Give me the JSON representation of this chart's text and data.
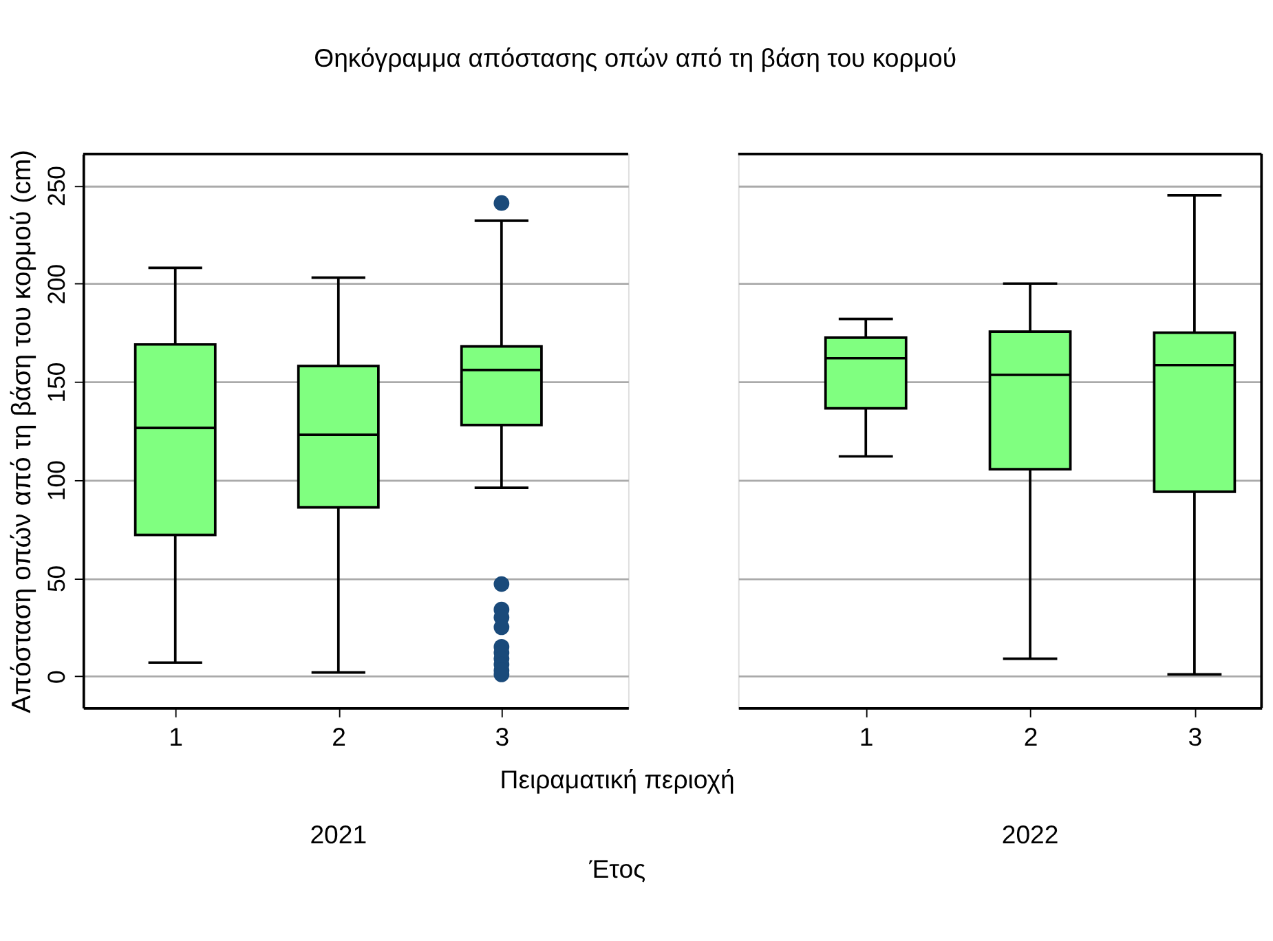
{
  "chart_data": [
    {
      "type": "box",
      "title": "Θηκόγραμμα απόστασης οπών από τη βάση του κορμού",
      "xlabel": "Πειραματική περιοχή",
      "ylabel": "Απόσταση οπών από τη βάση του κορμού (cm)",
      "categories": [
        "1",
        "2",
        "3"
      ],
      "annotations": [
        "2021",
        "Έτος"
      ],
      "series": [
        {
          "color": "#80ff80",
          "boxes": [
            {
              "low": 7,
              "q1": 72,
              "median": 126.5,
              "q3": 169,
              "high": 208
            },
            {
              "low": 2,
              "q1": 86,
              "median": 123,
              "q3": 158,
              "high": 203
            },
            {
              "low": 96,
              "q1": 128,
              "median": 156,
              "q3": 168,
              "high": 232,
              "outliers": [
                241,
                47,
                34,
                30,
                25,
                15,
                12,
                9,
                6,
                3,
                1
              ]
            }
          ]
        }
      ],
      "ylim": [
        -16,
        266
      ],
      "yticks": [
        0,
        50,
        100,
        150,
        200,
        250
      ],
      "grid": "y"
    },
    {
      "type": "box",
      "categories": [
        "1",
        "2",
        "3"
      ],
      "annotations": [
        "2022"
      ],
      "series": [
        {
          "color": "#80ff80",
          "boxes": [
            {
              "low": 112,
              "q1": 136.5,
              "median": 162,
              "q3": 172.5,
              "high": 182
            },
            {
              "low": 9,
              "q1": 105.5,
              "median": 153.5,
              "q3": 175.5,
              "high": 200
            },
            {
              "low": 1,
              "q1": 94,
              "median": 158.5,
              "q3": 175,
              "high": 245
            }
          ]
        }
      ],
      "ylim": [
        -16,
        266
      ],
      "yticks": [
        0,
        50,
        100,
        150,
        200,
        250
      ],
      "grid": "y",
      "tick_labels": "x"
    }
  ]
}
